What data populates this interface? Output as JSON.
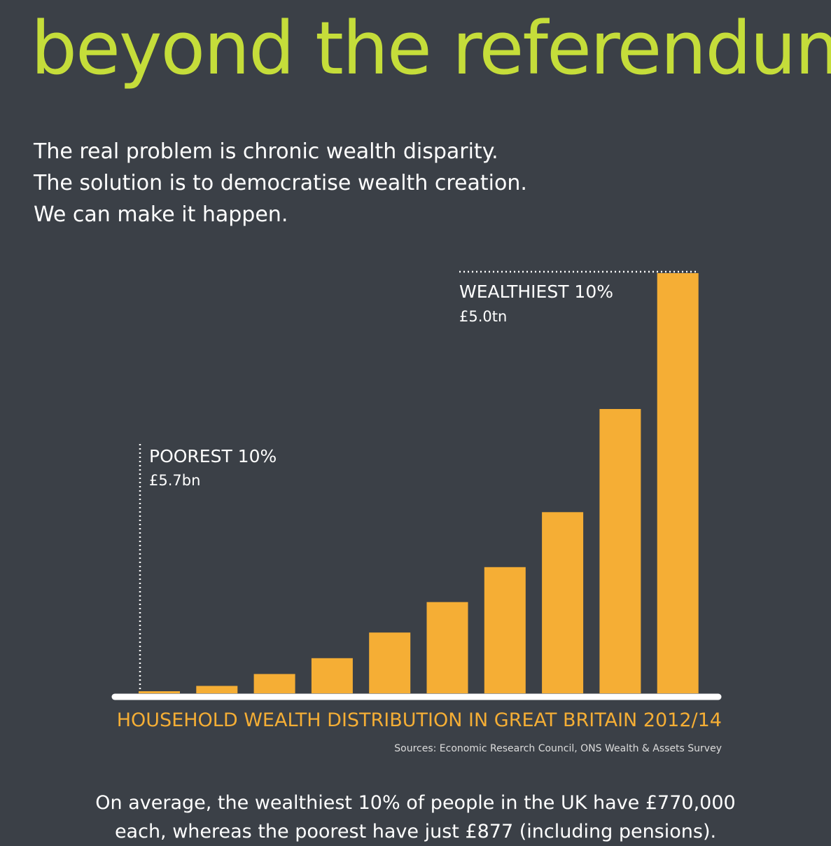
{
  "headline": "beyond the referendum",
  "intro": [
    "The real problem is chronic wealth disparity.",
    "The solution is to democratise wealth creation.",
    "We can make it happen."
  ],
  "colors": {
    "background": "#3b4047",
    "headline": "#c5dd3a",
    "bar": "#f5ae35",
    "chart_title": "#f5ae35",
    "baseline": "#ffffff",
    "text": "#ffffff"
  },
  "chart_data": {
    "type": "bar",
    "title": "HOUSEHOLD WEALTH DISTRIBUTION IN GREAT BRITAIN 2012/14",
    "sources": "Sources: Economic Research Council, ONS Wealth & Assets Survey",
    "unit": "£bn",
    "values": [
      5.7,
      88,
      230,
      418,
      723,
      1086,
      1502,
      2156,
      3383,
      5000
    ],
    "ylim": [
      0,
      5000
    ],
    "grid": false,
    "annotations": {
      "poorest": {
        "label": "POOREST 10%",
        "value": "£5.7bn"
      },
      "wealthiest": {
        "label": "WEALTHIEST 10%",
        "value": "£5.0tn"
      }
    }
  },
  "footer": [
    "On average, the wealthiest 10% of people in the UK have £770,000",
    "each, whereas the poorest have just £877 (including pensions)."
  ]
}
